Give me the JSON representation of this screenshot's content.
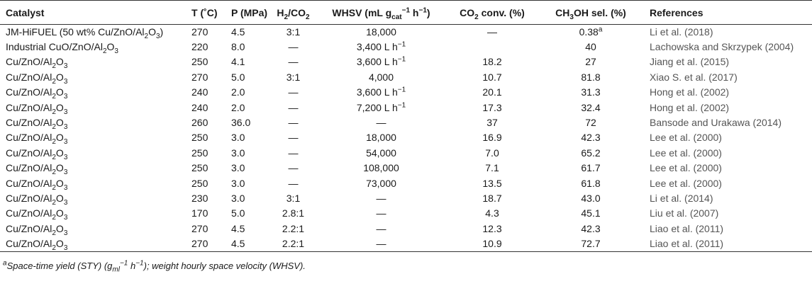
{
  "table": {
    "header": [
      "Catalyst",
      "T (˚C)",
      "P (MPa)",
      [
        "H",
        {
          "sub": "2"
        },
        "/CO",
        {
          "sub": "2"
        }
      ],
      [
        "WHSV (mL g",
        {
          "sub": "cat"
        },
        {
          "sup": "−1"
        },
        " h",
        {
          "sup": "−1"
        },
        ")"
      ],
      [
        "CO",
        {
          "sub": "2"
        },
        " conv. (%)"
      ],
      [
        "CH",
        {
          "sub": "3"
        },
        "OH sel. (%)"
      ],
      "References"
    ],
    "rows": [
      [
        [
          "JM-HiFUEL (50 wt% Cu/ZnO/Al",
          {
            "sub": "2"
          },
          "O",
          {
            "sub": "3"
          },
          ")"
        ],
        "270",
        "4.5",
        "3:1",
        "18,000",
        "—",
        [
          "0.38",
          {
            "sup": "a"
          }
        ],
        "Li et al. (2018)"
      ],
      [
        [
          "Industrial CuO/ZnO/Al",
          {
            "sub": "2"
          },
          "O",
          {
            "sub": "3"
          }
        ],
        "220",
        "8.0",
        "—",
        [
          "3,400 L h",
          {
            "sup": "−1"
          }
        ],
        null,
        "40",
        "Lachowska and Skrzypek (2004)"
      ],
      [
        [
          "Cu/ZnO/Al",
          {
            "sub": "2"
          },
          "O",
          {
            "sub": "3"
          }
        ],
        "250",
        "4.1",
        "—",
        [
          "3,600 L h",
          {
            "sup": "−1"
          }
        ],
        "18.2",
        "27",
        "Jiang et al. (2015)"
      ],
      [
        [
          "Cu/ZnO/Al",
          {
            "sub": "2"
          },
          "O",
          {
            "sub": "3"
          }
        ],
        "270",
        "5.0",
        "3:1",
        "4,000",
        "10.7",
        "81.8",
        "Xiao S. et al. (2017)"
      ],
      [
        [
          "Cu/ZnO/Al",
          {
            "sub": "2"
          },
          "O",
          {
            "sub": "3"
          }
        ],
        "240",
        "2.0",
        "—",
        [
          "3,600 L h",
          {
            "sup": "−1"
          }
        ],
        "20.1",
        "31.3",
        "Hong et al. (2002)"
      ],
      [
        [
          "Cu/ZnO/Al",
          {
            "sub": "2"
          },
          "O",
          {
            "sub": "3"
          }
        ],
        "240",
        "2.0",
        "—",
        [
          "7,200 L h",
          {
            "sup": "−1"
          }
        ],
        "17.3",
        "32.4",
        "Hong et al. (2002)"
      ],
      [
        [
          "Cu/ZnO/Al",
          {
            "sub": "2"
          },
          "O",
          {
            "sub": "3"
          }
        ],
        "260",
        "36.0",
        "—",
        "—",
        "37",
        "72",
        "Bansode and Urakawa (2014)"
      ],
      [
        [
          "Cu/ZnO/Al",
          {
            "sub": "2"
          },
          "O",
          {
            "sub": "3"
          }
        ],
        "250",
        "3.0",
        "—",
        "18,000",
        "16.9",
        "42.3",
        "Lee et al. (2000)"
      ],
      [
        [
          "Cu/ZnO/Al",
          {
            "sub": "2"
          },
          "O",
          {
            "sub": "3"
          }
        ],
        "250",
        "3.0",
        "—",
        "54,000",
        "7.0",
        "65.2",
        "Lee et al. (2000)"
      ],
      [
        [
          "Cu/ZnO/Al",
          {
            "sub": "2"
          },
          "O",
          {
            "sub": "3"
          }
        ],
        "250",
        "3.0",
        "—",
        "108,000",
        "7.1",
        "61.7",
        "Lee et al. (2000)"
      ],
      [
        [
          "Cu/ZnO/Al",
          {
            "sub": "2"
          },
          "O",
          {
            "sub": "3"
          }
        ],
        "250",
        "3.0",
        "—",
        "73,000",
        "13.5",
        "61.8",
        "Lee et al. (2000)"
      ],
      [
        [
          "Cu/ZnO/Al",
          {
            "sub": "2"
          },
          "O",
          {
            "sub": "3"
          }
        ],
        "230",
        "3.0",
        "3:1",
        "—",
        "18.7",
        "43.0",
        "Li et al. (2014)"
      ],
      [
        [
          "Cu/ZnO/Al",
          {
            "sub": "2"
          },
          "O",
          {
            "sub": "3"
          }
        ],
        "170",
        "5.0",
        "2.8:1",
        "—",
        "4.3",
        "45.1",
        "Liu et al. (2007)"
      ],
      [
        [
          "Cu/ZnO/Al",
          {
            "sub": "2"
          },
          "O",
          {
            "sub": "3"
          }
        ],
        "270",
        "4.5",
        "2.2:1",
        "—",
        "12.3",
        "42.3",
        "Liao et al. (2011)"
      ],
      [
        [
          "Cu/ZnO/Al",
          {
            "sub": "2"
          },
          "O",
          {
            "sub": "3"
          }
        ],
        "270",
        "4.5",
        "2.2:1",
        "—",
        "10.9",
        "72.7",
        "Liao et al. (2011)"
      ]
    ],
    "footnote": [
      {
        "sup": "a"
      },
      "Space-time yield (STY) (g",
      {
        "sub": "ml"
      },
      {
        "sup": "−1"
      },
      " h",
      {
        "sup": "−1"
      },
      "); weight hourly space velocity (WHSV)."
    ]
  }
}
